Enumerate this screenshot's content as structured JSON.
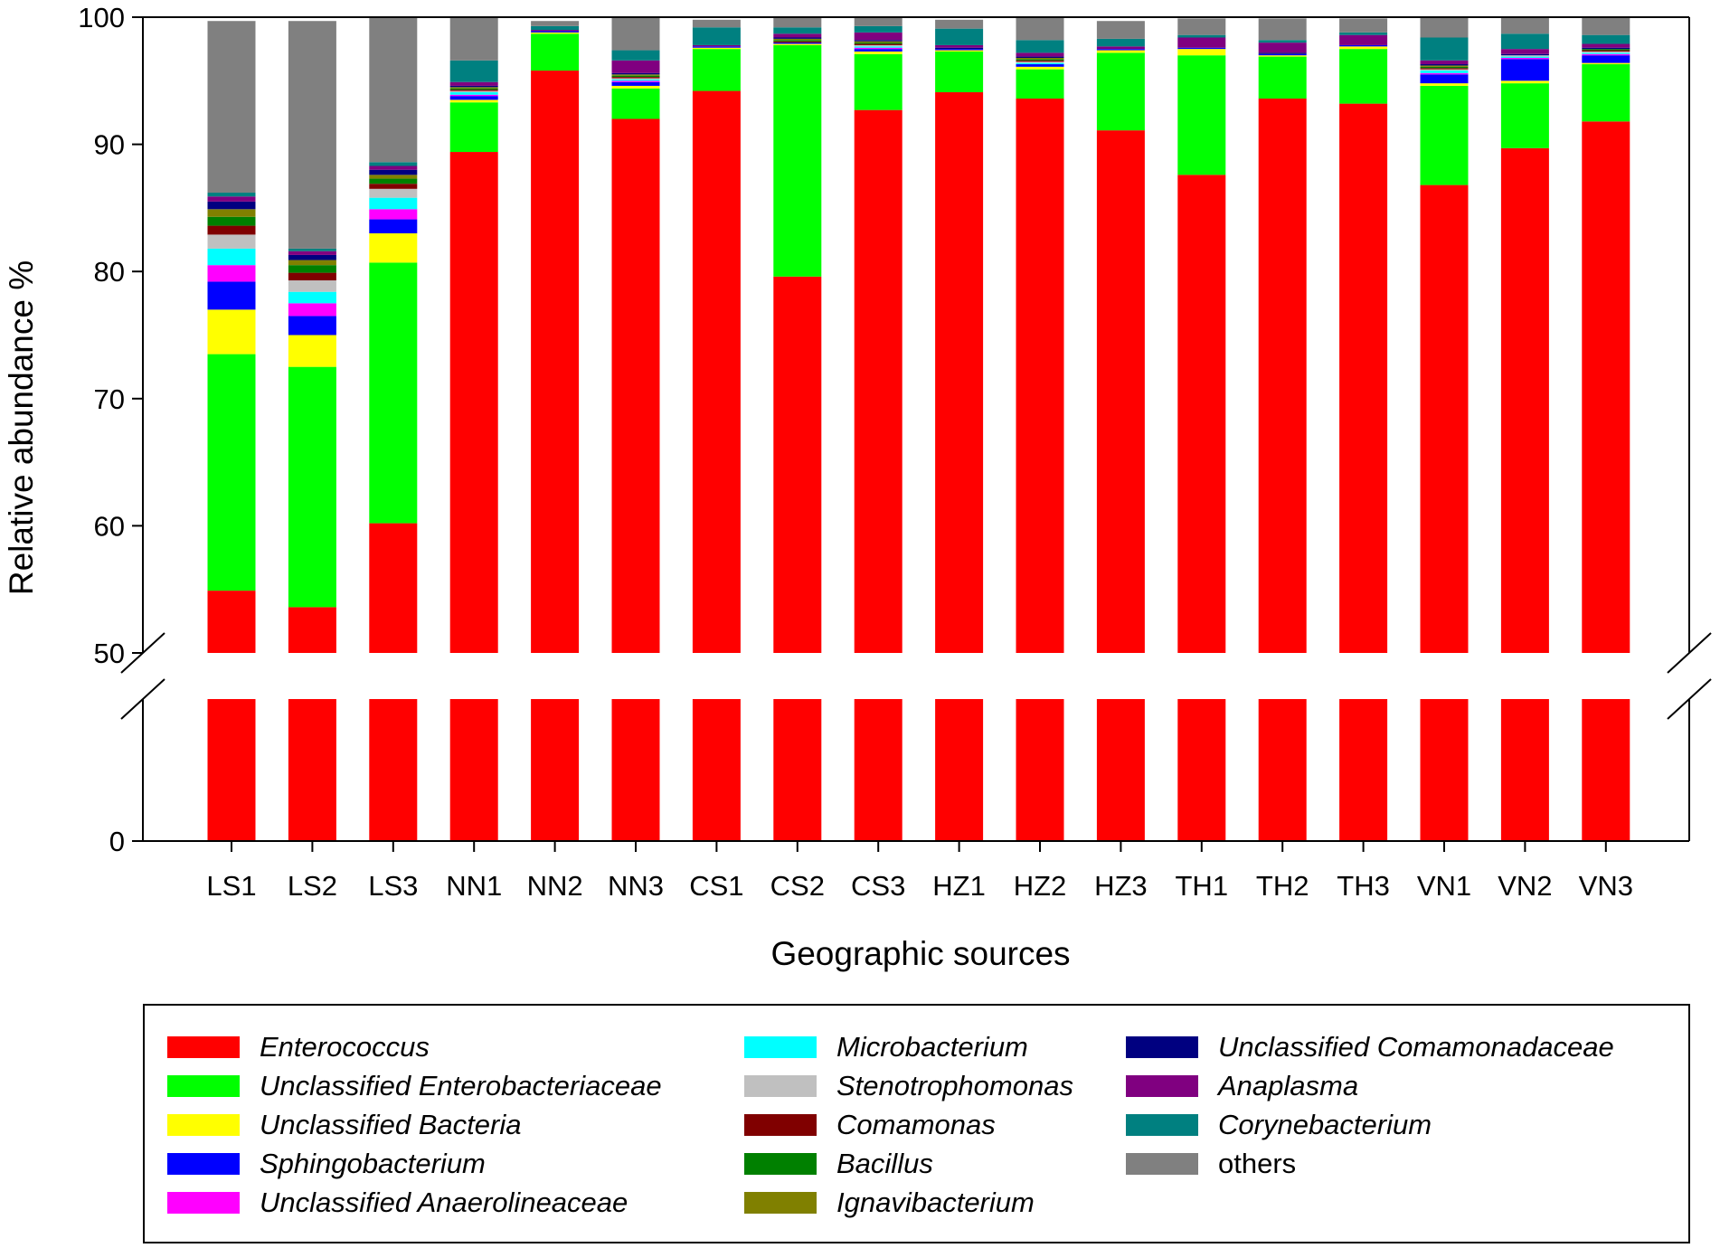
{
  "chart_data": {
    "type": "bar",
    "stacked": true,
    "title": "",
    "xlabel": "Geographic sources",
    "ylabel": "Relative abundance %",
    "ylim_lower_segment": [
      0,
      50
    ],
    "ylim_upper_segment": [
      50,
      100
    ],
    "axis_break": true,
    "yticks": [
      "0",
      "50",
      "60",
      "70",
      "80",
      "90",
      "100"
    ],
    "legend_position": "bottom",
    "categories": [
      "LS1",
      "LS2",
      "LS3",
      "NN1",
      "NN2",
      "NN3",
      "CS1",
      "CS2",
      "CS3",
      "HZ1",
      "HZ2",
      "HZ3",
      "TH1",
      "TH2",
      "TH3",
      "VN1",
      "VN2",
      "VN3"
    ],
    "series": [
      {
        "name": "Enterococcus",
        "italic": true,
        "color": "#ff0000",
        "values": [
          54.9,
          53.6,
          60.2,
          89.4,
          95.8,
          92.0,
          94.2,
          79.6,
          92.7,
          94.1,
          93.6,
          91.1,
          87.6,
          93.6,
          93.2,
          86.8,
          89.7,
          91.8
        ]
      },
      {
        "name": "Unclassified Enterobacteriaceae",
        "italic": true,
        "color": "#00ff00",
        "values": [
          18.6,
          18.9,
          20.5,
          3.9,
          2.9,
          2.4,
          3.3,
          18.2,
          4.4,
          3.2,
          2.3,
          6.1,
          9.4,
          3.3,
          4.3,
          7.8,
          5.1,
          4.5
        ]
      },
      {
        "name": "Unclassified Bacteria",
        "italic": true,
        "color": "#ffff00",
        "values": [
          3.5,
          2.5,
          2.3,
          0.2,
          0.1,
          0.2,
          0.1,
          0.1,
          0.2,
          0.1,
          0.2,
          0.2,
          0.5,
          0.1,
          0.2,
          0.2,
          0.2,
          0.1
        ]
      },
      {
        "name": "Sphingobacterium",
        "italic": true,
        "color": "#0000ff",
        "values": [
          2.2,
          1.5,
          1.1,
          0.3,
          0.1,
          0.3,
          0.1,
          0.1,
          0.2,
          0.1,
          0.2,
          0.1,
          0.1,
          0.1,
          0.1,
          0.7,
          1.7,
          0.6
        ]
      },
      {
        "name": "Unclassified Anaerolineaceae",
        "italic": true,
        "color": "#ff00ff",
        "values": [
          1.3,
          1.0,
          0.8,
          0.1,
          0.0,
          0.1,
          0.0,
          0.0,
          0.1,
          0.0,
          0.0,
          0.0,
          0.0,
          0.0,
          0.0,
          0.1,
          0.1,
          0.1
        ]
      },
      {
        "name": "Microbacterium",
        "italic": true,
        "color": "#00ffff",
        "values": [
          1.3,
          0.9,
          0.9,
          0.2,
          0.0,
          0.1,
          0.0,
          0.0,
          0.1,
          0.0,
          0.1,
          0.0,
          0.0,
          0.0,
          0.0,
          0.2,
          0.1,
          0.1
        ]
      },
      {
        "name": "Stenotrophomonas",
        "italic": true,
        "color": "#c0c0c0",
        "values": [
          1.1,
          0.9,
          0.7,
          0.1,
          0.0,
          0.1,
          0.0,
          0.0,
          0.1,
          0.0,
          0.1,
          0.0,
          0.0,
          0.0,
          0.0,
          0.1,
          0.1,
          0.1
        ]
      },
      {
        "name": "Comamonas",
        "italic": true,
        "color": "#800000",
        "values": [
          0.7,
          0.6,
          0.4,
          0.1,
          0.0,
          0.1,
          0.0,
          0.1,
          0.1,
          0.0,
          0.1,
          0.0,
          0.0,
          0.0,
          0.0,
          0.1,
          0.0,
          0.1
        ]
      },
      {
        "name": "Bacillus",
        "italic": true,
        "color": "#008000",
        "values": [
          0.7,
          0.6,
          0.4,
          0.1,
          0.0,
          0.1,
          0.0,
          0.1,
          0.1,
          0.0,
          0.1,
          0.0,
          0.0,
          0.0,
          0.0,
          0.1,
          0.0,
          0.1
        ]
      },
      {
        "name": "Ignavibacterium",
        "italic": true,
        "color": "#808000",
        "values": [
          0.6,
          0.4,
          0.3,
          0.1,
          0.0,
          0.1,
          0.0,
          0.1,
          0.1,
          0.0,
          0.1,
          0.0,
          0.0,
          0.0,
          0.0,
          0.1,
          0.0,
          0.0
        ]
      },
      {
        "name": "Unclassified Comamonadaceae",
        "italic": true,
        "color": "#000080",
        "values": [
          0.6,
          0.4,
          0.4,
          0.1,
          0.0,
          0.1,
          0.0,
          0.1,
          0.1,
          0.1,
          0.1,
          0.0,
          0.0,
          0.1,
          0.0,
          0.1,
          0.1,
          0.1
        ]
      },
      {
        "name": "Anaplasma",
        "italic": true,
        "color": "#800080",
        "values": [
          0.4,
          0.3,
          0.3,
          0.3,
          0.1,
          1.0,
          0.1,
          0.3,
          0.6,
          0.2,
          0.3,
          0.2,
          0.8,
          0.8,
          0.8,
          0.3,
          0.4,
          0.3
        ]
      },
      {
        "name": "Corynebacterium",
        "italic": true,
        "color": "#008080",
        "values": [
          0.3,
          0.2,
          0.3,
          1.7,
          0.3,
          0.8,
          1.4,
          0.5,
          0.5,
          1.3,
          1.0,
          0.6,
          0.2,
          0.2,
          0.2,
          1.8,
          1.2,
          0.7
        ]
      },
      {
        "name": "others",
        "italic": false,
        "color": "#808080",
        "values": [
          13.5,
          17.9,
          11.6,
          3.4,
          0.4,
          2.9,
          0.6,
          0.9,
          1.0,
          0.7,
          2.1,
          1.4,
          1.3,
          1.7,
          1.1,
          1.6,
          1.4,
          1.4
        ]
      }
    ]
  }
}
